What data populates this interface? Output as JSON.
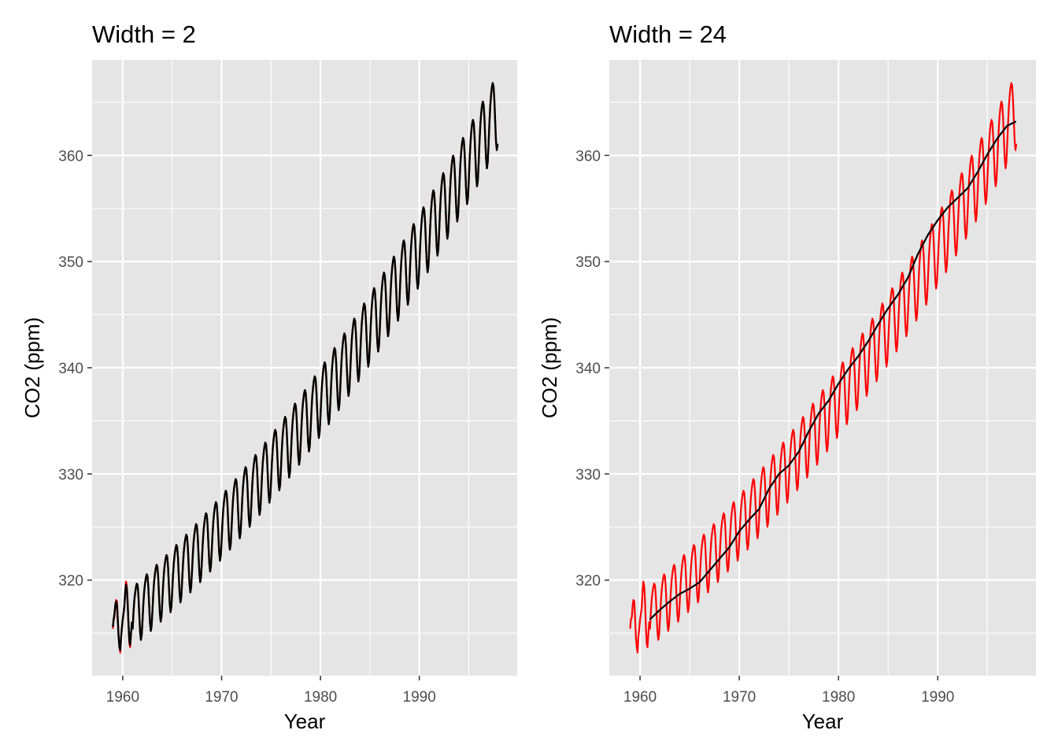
{
  "colors": {
    "panel_background": "#e5e5e5",
    "grid": "#ffffff",
    "raw_series": "#ff0000",
    "smoothed_series": "#000000",
    "tick_text": "#4d4d4d",
    "tick_mark": "#333333"
  },
  "chart_data": [
    {
      "type": "line",
      "title": "Width = 2",
      "xlabel": "Year",
      "ylabel": "CO2 (ppm)",
      "xlim": [
        1956.9,
        1999.9
      ],
      "ylim": [
        311.0,
        369.0
      ],
      "x_ticks": [
        1960,
        1970,
        1980,
        1990
      ],
      "x_tick_labels": [
        "1960",
        "1970",
        "1980",
        "1990"
      ],
      "y_ticks": [
        320,
        330,
        340,
        350,
        360
      ],
      "y_tick_labels": [
        "320",
        "330",
        "340",
        "350",
        "360"
      ],
      "grid": true,
      "legend": "none",
      "series": [
        {
          "color": "#ff0000",
          "x": [
            1959.0,
            1959.08,
            1959.17,
            1959.25,
            1959.33,
            1959.42,
            1959.5,
            1959.58,
            1959.67,
            1959.75,
            1959.83,
            1959.92,
            1960.0,
            1960.08,
            1960.17,
            1960.25,
            1960.33,
            1960.42,
            1960.5,
            1960.58,
            1960.67,
            1960.75,
            1960.83,
            1960.92
          ],
          "y": [
            315.42,
            316.31,
            316.5,
            317.56,
            318.13,
            318.0,
            316.39,
            314.65,
            313.68,
            313.18,
            314.66,
            315.43,
            316.27,
            316.81,
            317.42,
            318.87,
            319.87,
            319.43,
            318.01,
            315.74,
            314.0,
            313.68,
            314.84,
            316.03
          ]
        },
        {
          "color": "#000000",
          "x": [
            1959.0,
            1959.08,
            1959.17,
            1959.25,
            1959.33,
            1959.42,
            1959.5,
            1959.58,
            1959.67,
            1959.75,
            1959.83,
            1959.92,
            1960.0,
            1960.08,
            1960.17,
            1960.25,
            1960.33,
            1960.42,
            1960.5,
            1960.58,
            1960.67,
            1960.75,
            1960.83,
            1960.92
          ],
          "y": [
            315.6,
            316.3,
            316.9,
            317.7,
            318.0,
            317.6,
            316.2,
            314.7,
            313.6,
            313.4,
            314.6,
            315.6,
            316.3,
            316.9,
            317.7,
            318.9,
            319.6,
            319.1,
            317.7,
            315.9,
            314.3,
            313.9,
            314.9,
            316.0
          ]
        }
      ]
    },
    {
      "type": "line",
      "title": "Width = 24",
      "xlabel": "Year",
      "ylabel": "CO2 (ppm)",
      "xlim": [
        1956.9,
        1999.9
      ],
      "ylim": [
        311.0,
        369.0
      ],
      "x_ticks": [
        1960,
        1970,
        1980,
        1990
      ],
      "x_tick_labels": [
        "1960",
        "1970",
        "1980",
        "1990"
      ],
      "y_ticks": [
        320,
        330,
        340,
        350,
        360
      ],
      "y_tick_labels": [
        "320",
        "330",
        "340",
        "350",
        "360"
      ],
      "grid": true,
      "legend": "none",
      "series": [
        {
          "color": "#ff0000",
          "x": [
            1959.0,
            1959.08,
            1959.17,
            1959.25,
            1959.33,
            1959.42,
            1959.5,
            1959.58,
            1959.67,
            1959.75,
            1959.83,
            1959.92,
            1960.0,
            1960.08,
            1960.17,
            1960.25,
            1960.33,
            1960.42,
            1960.5,
            1960.58,
            1960.67,
            1960.75,
            1960.83,
            1960.92
          ],
          "y": [
            315.42,
            316.31,
            316.5,
            317.56,
            318.13,
            318.0,
            316.39,
            314.65,
            313.68,
            313.18,
            314.66,
            315.43,
            316.27,
            316.81,
            317.42,
            318.87,
            319.87,
            319.43,
            318.01,
            315.74,
            314.0,
            313.68,
            314.84,
            316.03
          ]
        },
        {
          "color": "#000000",
          "x": [
            1961.0,
            1962.0,
            1963.0,
            1964.0,
            1965.0,
            1966.0,
            1967.0,
            1968.0,
            1969.0,
            1970.0,
            1971.0,
            1972.0,
            1973.0,
            1974.0,
            1975.0,
            1976.0,
            1977.0,
            1978.0,
            1979.0,
            1980.0,
            1981.0,
            1982.0,
            1983.0,
            1984.0,
            1985.0,
            1986.0,
            1987.0,
            1988.0,
            1989.0,
            1990.0,
            1991.0,
            1992.0,
            1993.0,
            1994.0,
            1995.0,
            1996.0,
            1997.0,
            1997.9
          ],
          "y": [
            316.3,
            317.2,
            318.0,
            318.7,
            319.2,
            319.8,
            320.9,
            322.0,
            323.1,
            324.6,
            325.7,
            326.7,
            328.6,
            330.0,
            330.8,
            332.1,
            334.0,
            335.7,
            336.9,
            338.5,
            339.9,
            341.1,
            342.5,
            344.1,
            345.6,
            346.9,
            348.5,
            350.7,
            352.5,
            353.9,
            355.1,
            356.0,
            356.9,
            358.4,
            360.1,
            361.6,
            362.8,
            363.2
          ]
        }
      ]
    }
  ]
}
